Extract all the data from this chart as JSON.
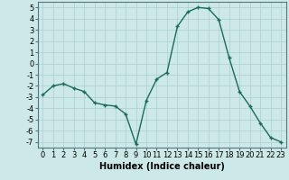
{
  "x": [
    0,
    1,
    2,
    3,
    4,
    5,
    6,
    7,
    8,
    9,
    10,
    11,
    12,
    13,
    14,
    15,
    16,
    17,
    18,
    19,
    20,
    21,
    22,
    23
  ],
  "y": [
    -2.8,
    -2.0,
    -1.8,
    -2.2,
    -2.5,
    -3.5,
    -3.7,
    -3.8,
    -4.5,
    -7.2,
    -3.3,
    -1.4,
    -0.8,
    3.3,
    4.6,
    5.0,
    4.9,
    3.9,
    0.5,
    -2.5,
    -3.8,
    -5.3,
    -6.6,
    -7.0
  ],
  "line_color": "#1a6b5a",
  "marker": "+",
  "marker_size": 3,
  "marker_lw": 1.0,
  "bg_color": "#cce8e8",
  "grid_color": "#aacfcf",
  "xlabel": "Humidex (Indice chaleur)",
  "xlim": [
    -0.5,
    23.5
  ],
  "ylim": [
    -7.5,
    5.5
  ],
  "xtick_labels": [
    "0",
    "1",
    "2",
    "3",
    "4",
    "5",
    "6",
    "7",
    "8",
    "9",
    "10",
    "11",
    "12",
    "13",
    "14",
    "15",
    "16",
    "17",
    "18",
    "19",
    "20",
    "21",
    "22",
    "23"
  ],
  "ytick_values": [
    -7,
    -6,
    -5,
    -4,
    -3,
    -2,
    -1,
    0,
    1,
    2,
    3,
    4,
    5
  ],
  "xlabel_fontsize": 7,
  "tick_fontsize": 6,
  "line_width": 1.0
}
